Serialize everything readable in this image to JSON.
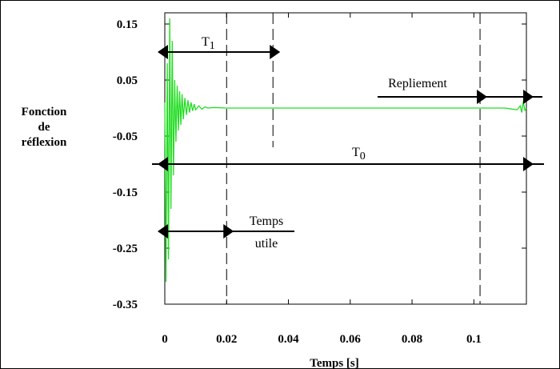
{
  "chart_data": {
    "type": "line",
    "xlabel": "Temps [s]",
    "ylabel_lines": [
      "Fonction",
      "de",
      "réflexion"
    ],
    "xticks": [
      0,
      0.02,
      0.04,
      0.06,
      0.08,
      0.1
    ],
    "xtick_labels": [
      "0",
      "0.02",
      "0.04",
      "0.06",
      "0.08",
      "0.1"
    ],
    "yticks": [
      0.15,
      0.05,
      -0.05,
      -0.15,
      -0.25,
      -0.35
    ],
    "ytick_labels": [
      "0.15",
      "0.05",
      "-0.05",
      "-0.15",
      "-0.25",
      "-0.35"
    ],
    "xlim": [
      0,
      0.117
    ],
    "ylim": [
      -0.35,
      0.17
    ],
    "grid": false,
    "series_color": "#22dd22",
    "series": [
      {
        "x": [
          0,
          0.0004,
          0.0008,
          0.0012,
          0.0016,
          0.002,
          0.0024,
          0.0028,
          0.0032,
          0.0036,
          0.004,
          0.0044,
          0.0048,
          0.0052,
          0.0056,
          0.006,
          0.0065,
          0.007,
          0.0075,
          0.008,
          0.0085,
          0.009,
          0.0095,
          0.01,
          0.011,
          0.012,
          0.013,
          0.014,
          0.016,
          0.02,
          0.05,
          0.08,
          0.11,
          0.114,
          0.115,
          0.1155,
          0.116,
          0.1165,
          0.117
        ],
        "y": [
          0.01,
          -0.31,
          0.08,
          -0.27,
          0.16,
          -0.18,
          0.12,
          -0.12,
          0.05,
          -0.06,
          0.04,
          -0.04,
          0.03,
          -0.03,
          0.025,
          -0.02,
          0.018,
          -0.012,
          0.014,
          -0.008,
          0.01,
          -0.005,
          0.007,
          -0.003,
          0.004,
          -0.002,
          0.002,
          0.0,
          0.001,
          0.0,
          0.0,
          0.0,
          0.0,
          -0.003,
          0.004,
          -0.008,
          0.012,
          -0.004,
          0.0
        ]
      }
    ],
    "annotations": {
      "t1": {
        "label": "T",
        "sub": "1",
        "x_start": 0,
        "x_end": 0.035,
        "y": 0.1
      },
      "t0": {
        "label": "T",
        "sub": "0",
        "x_start": 0,
        "x_end": 0.117,
        "y": -0.1
      },
      "temps_utile": {
        "label_lines": [
          "Temps",
          "utile"
        ],
        "x_start": 0,
        "x_end": 0.02,
        "y": -0.22
      },
      "repliement": {
        "label": "Repliement",
        "x_start": 0.102,
        "x_end": 0.117,
        "y": 0.02
      }
    },
    "vlines": [
      0.02,
      0.035,
      0.102
    ]
  }
}
